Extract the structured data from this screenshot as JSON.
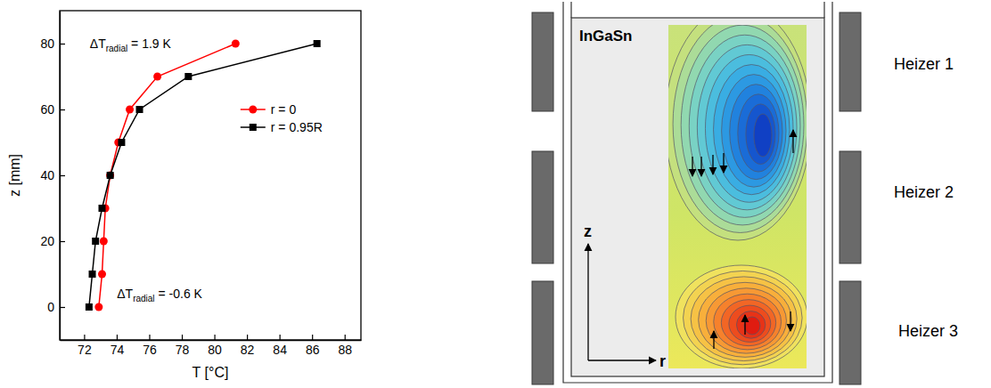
{
  "chart_data": {
    "type": "line",
    "x_label": "T [°C]",
    "y_label": "z [mm]",
    "xlim": [
      70.5,
      89
    ],
    "ylim": [
      -10,
      90
    ],
    "xticks": [
      72,
      74,
      76,
      78,
      80,
      82,
      84,
      86,
      88
    ],
    "yticks": [
      0,
      20,
      40,
      60,
      80
    ],
    "grid": false,
    "legend": "right",
    "series": [
      {
        "name": "r = 0",
        "color": "#ff0000",
        "marker": "circle",
        "x": [
          72.9,
          73.1,
          73.2,
          73.3,
          73.6,
          74.1,
          74.8,
          76.5,
          81.3
        ],
        "values": [
          0,
          10,
          20,
          30,
          40,
          50,
          60,
          70,
          80
        ]
      },
      {
        "name": "r = 0.95R",
        "color": "#000000",
        "marker": "square",
        "x": [
          72.3,
          72.5,
          72.7,
          73.1,
          73.6,
          74.3,
          75.4,
          78.4,
          86.3
        ],
        "values": [
          0,
          10,
          20,
          30,
          40,
          50,
          60,
          70,
          80
        ]
      }
    ],
    "annotations": [
      {
        "text": "ΔT",
        "subscript": "radial",
        "text_after": " = 1.9 K"
      },
      {
        "text": "ΔT",
        "subscript": "radial",
        "text_after": " = -0.6 K"
      }
    ]
  },
  "diagram": {
    "liquid": "InGaSn",
    "heaters": [
      "Heizer 1",
      "Heizer 2",
      "Heizer 3"
    ],
    "axes": [
      "z",
      "r"
    ]
  }
}
